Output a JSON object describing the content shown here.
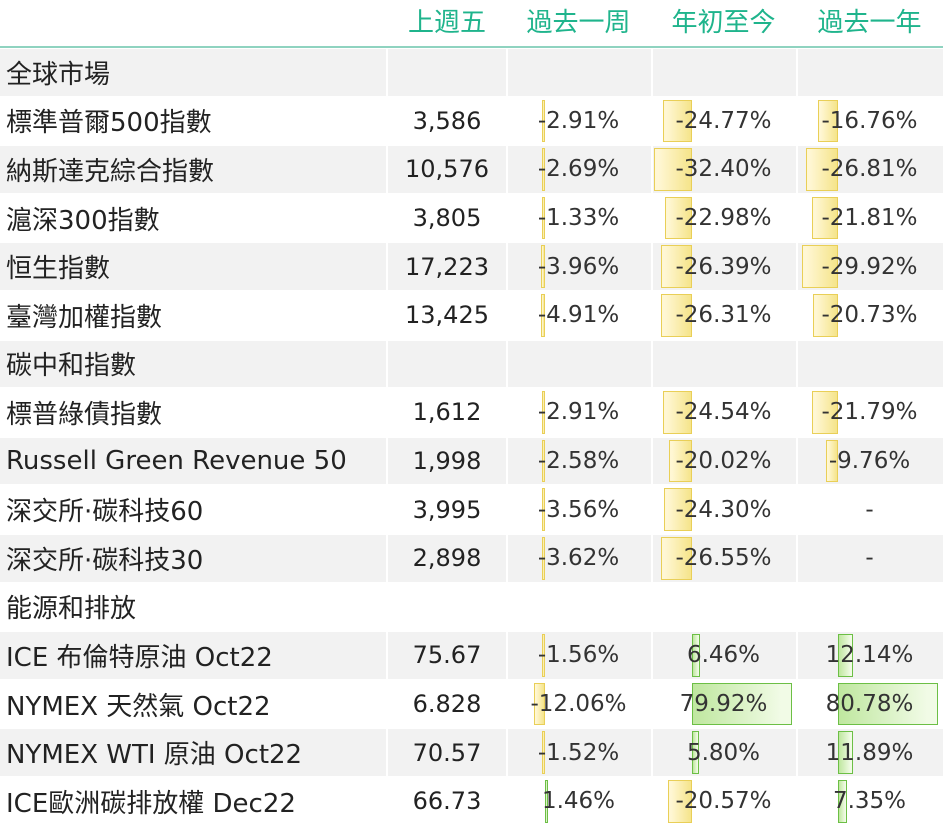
{
  "header": {
    "cols": [
      "上週五",
      "過去一周",
      "年初至今",
      "過去一年"
    ]
  },
  "rows": [
    {
      "type": "section",
      "label": "全球市場"
    },
    {
      "type": "data",
      "label": "標準普爾500指數",
      "value": "3,586",
      "week": "-2.91%",
      "ytd": "-24.77%",
      "year": "-16.76%",
      "week_n": -2.91,
      "ytd_n": -24.77,
      "year_n": -16.76
    },
    {
      "type": "data",
      "label": "納斯達克綜合指數",
      "value": "10,576",
      "week": "-2.69%",
      "ytd": "-32.40%",
      "year": "-26.81%",
      "week_n": -2.69,
      "ytd_n": -32.4,
      "year_n": -26.81
    },
    {
      "type": "data",
      "label": "滬深300指數",
      "value": "3,805",
      "week": "-1.33%",
      "ytd": "-22.98%",
      "year": "-21.81%",
      "week_n": -1.33,
      "ytd_n": -22.98,
      "year_n": -21.81
    },
    {
      "type": "data",
      "label": "恒生指數",
      "value": "17,223",
      "week": "-3.96%",
      "ytd": "-26.39%",
      "year": "-29.92%",
      "week_n": -3.96,
      "ytd_n": -26.39,
      "year_n": -29.92
    },
    {
      "type": "data",
      "label": "臺灣加權指數",
      "value": "13,425",
      "week": "-4.91%",
      "ytd": "-26.31%",
      "year": "-20.73%",
      "week_n": -4.91,
      "ytd_n": -26.31,
      "year_n": -20.73
    },
    {
      "type": "section",
      "label": "碳中和指數"
    },
    {
      "type": "data",
      "label": "標普綠債指數",
      "value": "1,612",
      "week": "-2.91%",
      "ytd": "-24.54%",
      "year": "-21.79%",
      "week_n": -2.91,
      "ytd_n": -24.54,
      "year_n": -21.79
    },
    {
      "type": "data",
      "label": "Russell Green Revenue 50",
      "value": "1,998",
      "week": "-2.58%",
      "ytd": "-20.02%",
      "year": "-9.76%",
      "week_n": -2.58,
      "ytd_n": -20.02,
      "year_n": -9.76
    },
    {
      "type": "data",
      "label": "深交所·碳科技60",
      "value": "3,995",
      "week": "-3.56%",
      "ytd": "-24.30%",
      "year": "-",
      "week_n": -3.56,
      "ytd_n": -24.3,
      "year_n": null
    },
    {
      "type": "data",
      "label": "深交所·碳科技30",
      "value": "2,898",
      "week": "-3.62%",
      "ytd": "-26.55%",
      "year": "-",
      "week_n": -3.62,
      "ytd_n": -26.55,
      "year_n": null
    },
    {
      "type": "section",
      "label": "能源和排放"
    },
    {
      "type": "data",
      "label": "ICE 布倫特原油 Oct22",
      "value": "75.67",
      "week": "-1.56%",
      "ytd": "6.46%",
      "year": "12.14%",
      "week_n": -1.56,
      "ytd_n": 6.46,
      "year_n": 12.14
    },
    {
      "type": "data",
      "label": "NYMEX 天然氣 Oct22",
      "value": "6.828",
      "week": "-12.06%",
      "ytd": "79.92%",
      "year": "80.78%",
      "week_n": -12.06,
      "ytd_n": 79.92,
      "year_n": 80.78
    },
    {
      "type": "data",
      "label": "NYMEX WTI 原油 Oct22",
      "value": "70.57",
      "week": "-1.52%",
      "ytd": "5.80%",
      "year": "11.89%",
      "week_n": -1.52,
      "ytd_n": 5.8,
      "year_n": 11.89
    },
    {
      "type": "data",
      "label": "ICE歐洲碳排放權  Dec22",
      "value": "66.73",
      "week": "1.46%",
      "ytd": "-20.57%",
      "year": "7.35%",
      "week_n": 1.46,
      "ytd_n": -20.57,
      "year_n": 7.35
    }
  ],
  "colors": {
    "header_text": "#1fb48c",
    "neg_bar": "#f5e48a",
    "pos_bar": "#bfe79f",
    "stripe": "#f2f2f2"
  }
}
